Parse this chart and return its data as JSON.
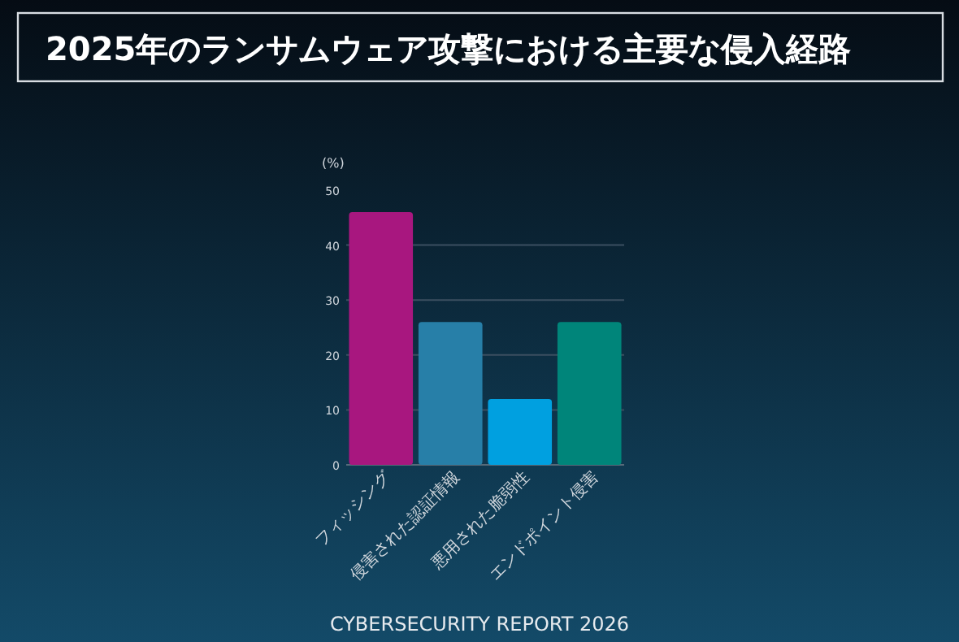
{
  "chart_data": {
    "type": "bar",
    "title": "2025年のランサムウェア攻撃における主要な侵入経路",
    "ylabel": "(%)",
    "categories": [
      "フィッシング",
      "侵害された認証情報",
      "悪用された脆弱性",
      "エンドポイント侵害"
    ],
    "values": [
      46,
      26,
      12,
      26
    ],
    "colors": [
      "#a8177f",
      "#277fa8",
      "#00a0e0",
      "#00857a"
    ],
    "ylim": [
      0,
      50
    ],
    "yticks": [
      0,
      10,
      20,
      30,
      40,
      50
    ],
    "grid": "y",
    "annotations": [
      "CYBERSECURITY REPORT 2026"
    ]
  }
}
